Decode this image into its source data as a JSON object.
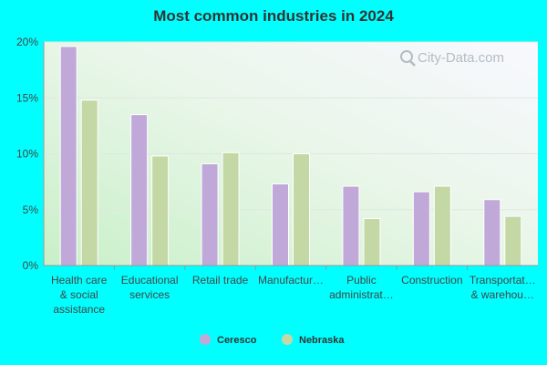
{
  "chart_data": {
    "type": "bar",
    "title": "Most common industries in 2024",
    "categories": [
      [
        "Health care",
        "& social",
        "assistance"
      ],
      [
        "Educational",
        "services"
      ],
      [
        "Retail trade"
      ],
      [
        "Manufactur…"
      ],
      [
        "Public",
        "administrat…"
      ],
      [
        "Construction"
      ],
      [
        "Transportat…",
        "& warehou…"
      ]
    ],
    "series": [
      {
        "name": "Ceresco",
        "color": "#c0a9d9",
        "values": [
          19.6,
          13.5,
          9.1,
          7.3,
          7.1,
          6.6,
          5.9
        ]
      },
      {
        "name": "Nebraska",
        "color": "#c4d8a5",
        "values": [
          14.8,
          9.8,
          10.1,
          10.0,
          4.2,
          7.1,
          4.4
        ]
      }
    ],
    "ylim": [
      0,
      20
    ],
    "yticks": [
      0,
      5,
      10,
      15,
      20
    ],
    "ytick_labels": [
      "0%",
      "5%",
      "10%",
      "15%",
      "20%"
    ],
    "xlabel": "",
    "ylabel": "",
    "grid": true,
    "legend_position": "bottom"
  },
  "watermark": {
    "text": "City-Data.com",
    "icon": "magnifier-icon"
  }
}
